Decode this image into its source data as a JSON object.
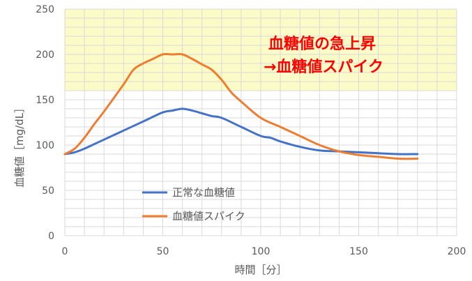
{
  "chart_data": {
    "type": "line",
    "title": "",
    "xlabel": "時間［分］",
    "ylabel": "血糖値［mg/dL］",
    "xlim": [
      0,
      200
    ],
    "ylim": [
      0,
      250
    ],
    "xticks": [
      0,
      50,
      100,
      150,
      200
    ],
    "yticks": [
      0,
      50,
      100,
      150,
      200,
      250
    ],
    "grid": true,
    "legend_position": "bottom-left",
    "highlight_band": {
      "y_from": 160,
      "y_to": 250,
      "color": "#fbfbc8"
    },
    "annotation": {
      "lines": [
        "血糖値の急上昇",
        "→血糖値スパイク"
      ],
      "color": "#ff0000"
    },
    "series": [
      {
        "name": "正常な血糖値",
        "color": "#4472c4",
        "x": [
          0,
          5,
          10,
          15,
          20,
          30,
          40,
          50,
          55,
          60,
          65,
          70,
          75,
          80,
          90,
          100,
          105,
          110,
          120,
          130,
          140,
          150,
          160,
          170,
          180
        ],
        "y": [
          90,
          92,
          96,
          101,
          106,
          116,
          126,
          136,
          138,
          140,
          138,
          135,
          132,
          130,
          120,
          110,
          108,
          104,
          98,
          94,
          93,
          92,
          91,
          90,
          90
        ]
      },
      {
        "name": "血糖値スパイク",
        "color": "#ed7d31",
        "x": [
          0,
          5,
          10,
          15,
          20,
          30,
          35,
          40,
          45,
          50,
          55,
          60,
          65,
          70,
          75,
          80,
          85,
          90,
          100,
          110,
          120,
          130,
          140,
          150,
          160,
          170,
          180
        ],
        "y": [
          90,
          96,
          108,
          123,
          137,
          167,
          183,
          190,
          195,
          200,
          200,
          200,
          195,
          189,
          183,
          172,
          158,
          148,
          130,
          120,
          110,
          100,
          93,
          89,
          87,
          85,
          85
        ]
      }
    ]
  }
}
